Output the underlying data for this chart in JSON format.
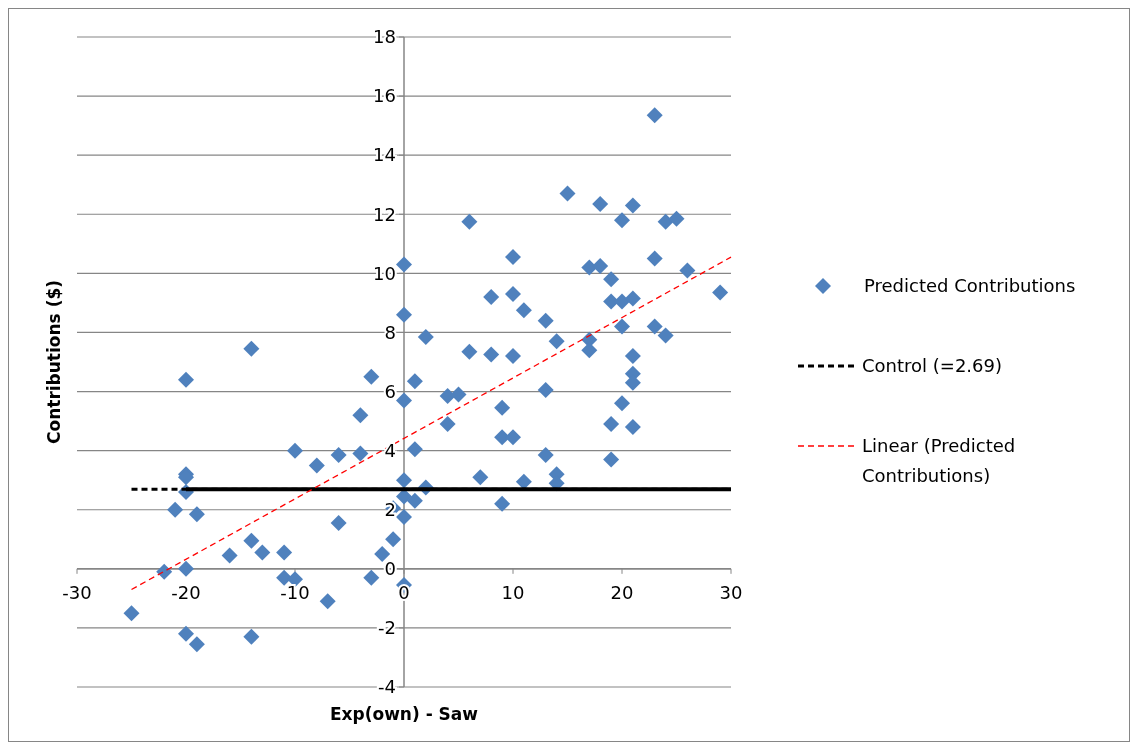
{
  "chart_data": {
    "type": "scatter",
    "xlabel": "Exp(own) - Saw",
    "ylabel": "Contributions ($)",
    "xlim": [
      -30,
      30
    ],
    "xticks": [
      -30,
      -20,
      -10,
      0,
      10,
      20,
      30
    ],
    "ylim": [
      -4,
      18
    ],
    "yticks": [
      -4,
      -2,
      0,
      2,
      4,
      6,
      8,
      10,
      12,
      14,
      16,
      18
    ],
    "grid": "y",
    "legend": "right",
    "series": [
      {
        "name": "Predicted Contributions",
        "marker": "diamond",
        "color": "#4f81bd",
        "x": [
          -25,
          -22,
          -20,
          -20,
          -20,
          -20,
          -20,
          -21,
          -19,
          -20,
          -19,
          -16,
          -14,
          -13,
          -14,
          -14,
          -11,
          -11,
          -10,
          -10,
          -8,
          -7,
          -6,
          -6,
          -4,
          -4,
          -3,
          -3,
          -2,
          -1,
          -1,
          0,
          0,
          0,
          0,
          0,
          0,
          0,
          1,
          1,
          1,
          2,
          2,
          4,
          4,
          5,
          6,
          6,
          7,
          8,
          8,
          9,
          9,
          9,
          10,
          10,
          10,
          10,
          11,
          11,
          13,
          13,
          13,
          14,
          14,
          14,
          15,
          17,
          17,
          17,
          18,
          18,
          19,
          19,
          19,
          19,
          20,
          20,
          20,
          20,
          21,
          21,
          21,
          21,
          21,
          21,
          23,
          23,
          23,
          24,
          24,
          25,
          26,
          29
        ],
        "values": [
          -1.5,
          -0.1,
          0.0,
          6.4,
          3.2,
          3.1,
          2.6,
          2.0,
          1.85,
          -2.2,
          -2.55,
          0.45,
          0.95,
          0.55,
          7.45,
          -2.3,
          0.55,
          -0.3,
          -0.35,
          4.0,
          3.5,
          -1.1,
          3.85,
          1.55,
          5.2,
          3.9,
          6.5,
          -0.3,
          0.5,
          1.0,
          2.05,
          10.3,
          8.6,
          5.7,
          3.0,
          2.45,
          1.75,
          -0.55,
          2.3,
          6.35,
          4.05,
          7.85,
          2.75,
          5.85,
          4.9,
          5.9,
          11.75,
          7.35,
          3.1,
          9.2,
          7.25,
          5.45,
          4.45,
          2.2,
          10.55,
          9.3,
          7.2,
          4.45,
          8.75,
          2.95,
          8.4,
          6.05,
          3.85,
          7.7,
          3.2,
          2.9,
          12.7,
          10.2,
          7.75,
          7.4,
          10.25,
          12.35,
          9.8,
          9.05,
          4.9,
          3.7,
          11.8,
          9.05,
          8.2,
          5.6,
          12.3,
          9.15,
          7.2,
          6.6,
          6.3,
          4.8,
          15.35,
          10.5,
          8.2,
          11.75,
          7.9,
          11.85,
          10.1,
          9.35
        ]
      },
      {
        "name": "Control (=2.69)",
        "type": "line",
        "line_style": "dashed",
        "color": "#000000",
        "x": [
          -25,
          30
        ],
        "values": [
          2.69,
          2.69
        ]
      },
      {
        "type": "line",
        "line_style": "solid",
        "color": "#000000",
        "x": [
          -20,
          30
        ],
        "values": [
          2.69,
          2.69
        ]
      },
      {
        "name": "Linear (Predicted Contributions)",
        "type": "line",
        "line_style": "dashed",
        "color": "#ff0000",
        "x": [
          -25,
          30
        ],
        "values": [
          -0.7,
          10.55
        ]
      }
    ]
  }
}
